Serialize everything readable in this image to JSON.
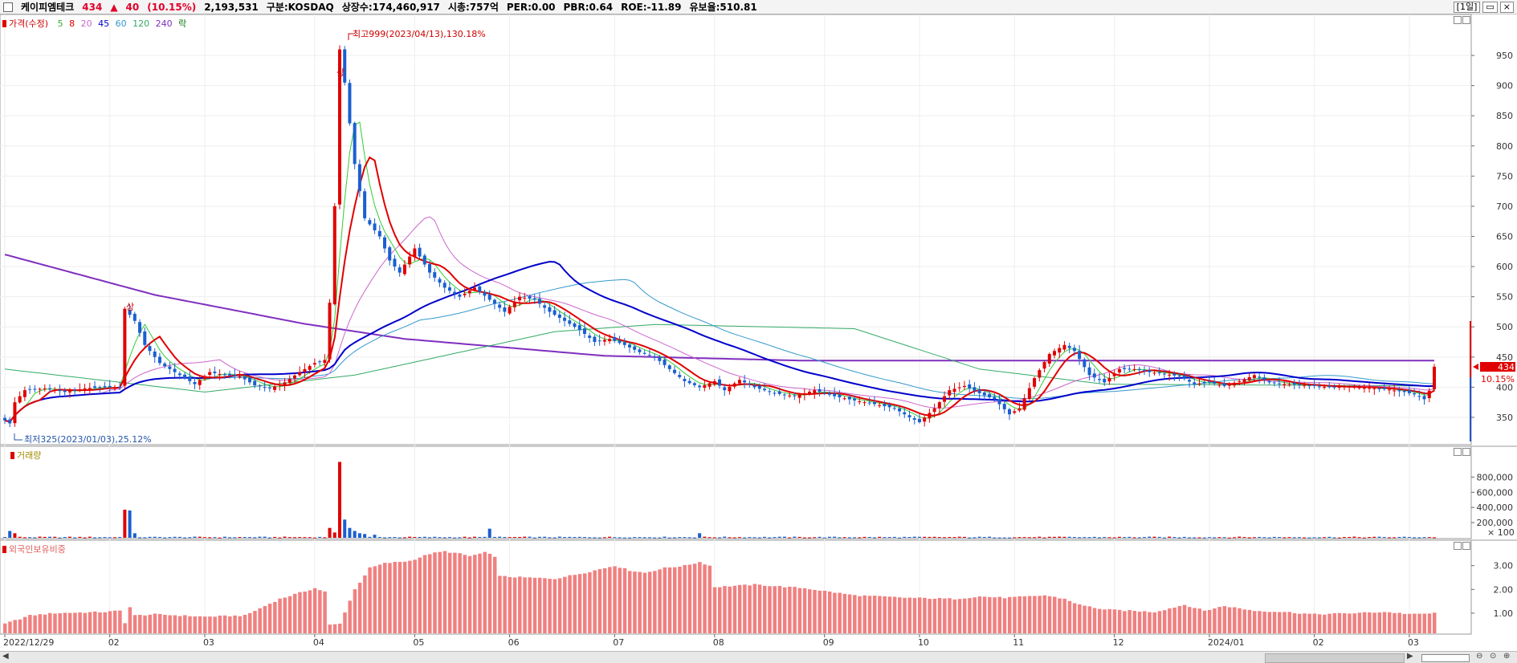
{
  "header": {
    "stock_name": "케이피엠테크",
    "price": "434",
    "change_arrow": "▲",
    "change": "40",
    "change_pct": "(10.15%)",
    "volume": "2,193,531",
    "market": "구분:KOSDAQ",
    "shares": "상장수:174,460,917",
    "market_cap": "시총:757억",
    "per": "PER:0.00",
    "pbr": "PBR:0.64",
    "roe": "ROE:-11.89",
    "retention": "유보율:510.81",
    "period": "[1일]"
  },
  "price_panel": {
    "label": "가격(수정)",
    "ma_labels": [
      "5",
      "8",
      "20",
      "45",
      "60",
      "120",
      "240"
    ],
    "ma_colors": [
      "#33cc33",
      "#e00000",
      "#cc66cc",
      "#0000cc",
      "#3399cc",
      "#33aa66",
      "#7f2fbf"
    ],
    "extra_label": "락",
    "high_note": "최고999(2023/04/13),130.18%",
    "low_note": "최저325(2023/01/03),25.12%",
    "event_marks": [
      "상",
      "상"
    ],
    "current_price_tag": "434",
    "current_pct_tag": "10.15%"
  },
  "volume_panel": {
    "label": "거래량",
    "unit": "× 100"
  },
  "foreign_panel": {
    "label": "외국인보유비중"
  },
  "chart_data": [
    {
      "type": "candlestick",
      "name": "가격(수정)",
      "yticks": [
        350,
        400,
        450,
        500,
        550,
        600,
        650,
        700,
        750,
        800,
        850,
        900,
        950
      ],
      "ylim": [
        310,
        1010
      ],
      "xticks": [
        {
          "label": "2022/12/29",
          "idx": 0
        },
        {
          "label": "02",
          "idx": 21
        },
        {
          "label": "03",
          "idx": 40
        },
        {
          "label": "04",
          "idx": 62
        },
        {
          "label": "05",
          "idx": 82
        },
        {
          "label": "06",
          "idx": 101
        },
        {
          "label": "07",
          "idx": 122
        },
        {
          "label": "08",
          "idx": 142
        },
        {
          "label": "09",
          "idx": 164
        },
        {
          "label": "10",
          "idx": 183
        },
        {
          "label": "11",
          "idx": 202
        },
        {
          "label": "12",
          "idx": 222
        },
        {
          "label": "2024/01",
          "idx": 241
        },
        {
          "label": "02",
          "idx": 262
        },
        {
          "label": "03",
          "idx": 281
        }
      ],
      "anchors_close": [
        [
          0,
          345
        ],
        [
          1,
          340
        ],
        [
          2,
          375
        ],
        [
          4,
          395
        ],
        [
          8,
          398
        ],
        [
          12,
          392
        ],
        [
          16,
          398
        ],
        [
          20,
          400
        ],
        [
          23,
          400
        ],
        [
          24,
          530
        ],
        [
          26,
          510
        ],
        [
          28,
          470
        ],
        [
          31,
          440
        ],
        [
          35,
          420
        ],
        [
          38,
          405
        ],
        [
          41,
          425
        ],
        [
          44,
          420
        ],
        [
          47,
          418
        ],
        [
          50,
          403
        ],
        [
          53,
          398
        ],
        [
          56,
          408
        ],
        [
          59,
          425
        ],
        [
          62,
          440
        ],
        [
          64,
          445
        ],
        [
          65,
          540
        ],
        [
          66,
          700
        ],
        [
          67,
          960
        ],
        [
          68,
          905
        ],
        [
          70,
          770
        ],
        [
          72,
          680
        ],
        [
          75,
          650
        ],
        [
          77,
          610
        ],
        [
          79,
          590
        ],
        [
          82,
          630
        ],
        [
          85,
          590
        ],
        [
          88,
          565
        ],
        [
          91,
          550
        ],
        [
          94,
          565
        ],
        [
          97,
          545
        ],
        [
          100,
          525
        ],
        [
          103,
          550
        ],
        [
          106,
          545
        ],
        [
          109,
          525
        ],
        [
          112,
          510
        ],
        [
          115,
          495
        ],
        [
          118,
          475
        ],
        [
          121,
          480
        ],
        [
          124,
          470
        ],
        [
          127,
          458
        ],
        [
          130,
          450
        ],
        [
          133,
          430
        ],
        [
          136,
          410
        ],
        [
          139,
          400
        ],
        [
          142,
          410
        ],
        [
          144,
          395
        ],
        [
          147,
          412
        ],
        [
          150,
          400
        ],
        [
          154,
          390
        ],
        [
          158,
          385
        ],
        [
          162,
          395
        ],
        [
          166,
          385
        ],
        [
          170,
          378
        ],
        [
          174,
          372
        ],
        [
          178,
          365
        ],
        [
          181,
          350
        ],
        [
          183,
          342
        ],
        [
          186,
          365
        ],
        [
          189,
          395
        ],
        [
          192,
          402
        ],
        [
          195,
          390
        ],
        [
          198,
          380
        ],
        [
          201,
          355
        ],
        [
          203,
          365
        ],
        [
          206,
          415
        ],
        [
          209,
          455
        ],
        [
          212,
          470
        ],
        [
          214,
          460
        ],
        [
          217,
          420
        ],
        [
          220,
          408
        ],
        [
          223,
          430
        ],
        [
          226,
          430
        ],
        [
          229,
          425
        ],
        [
          232,
          422
        ],
        [
          235,
          418
        ],
        [
          238,
          405
        ],
        [
          241,
          408
        ],
        [
          244,
          402
        ],
        [
          247,
          410
        ],
        [
          250,
          420
        ],
        [
          253,
          408
        ],
        [
          256,
          405
        ],
        [
          259,
          404
        ],
        [
          262,
          402
        ],
        [
          265,
          400
        ],
        [
          268,
          401
        ],
        [
          271,
          400
        ],
        [
          274,
          398
        ],
        [
          277,
          396
        ],
        [
          280,
          392
        ],
        [
          282,
          388
        ],
        [
          283,
          385
        ],
        [
          284,
          380
        ],
        [
          285,
          394
        ],
        [
          286,
          434
        ]
      ],
      "ma_levels": {
        "120": [
          [
            0,
            430
          ],
          [
            40,
            392
          ],
          [
            70,
            420
          ],
          [
            110,
            492
          ],
          [
            130,
            504
          ],
          [
            170,
            497
          ],
          [
            195,
            430
          ],
          [
            220,
            405
          ],
          [
            286,
            402
          ]
        ],
        "240": [
          [
            0,
            620
          ],
          [
            30,
            553
          ],
          [
            60,
            505
          ],
          [
            80,
            480
          ],
          [
            120,
            452
          ],
          [
            160,
            444
          ],
          [
            286,
            444
          ]
        ]
      }
    },
    {
      "type": "bar",
      "name": "거래량",
      "yticks": [
        200000,
        400000,
        600000,
        800000
      ],
      "ylim": [
        0,
        1100000
      ],
      "spikes": [
        {
          "idx": 1,
          "value": 90000
        },
        {
          "idx": 2,
          "value": 60000
        },
        {
          "idx": 24,
          "value": 370000
        },
        {
          "idx": 25,
          "value": 360000
        },
        {
          "idx": 26,
          "value": 60000
        },
        {
          "idx": 65,
          "value": 130000
        },
        {
          "idx": 66,
          "value": 70000
        },
        {
          "idx": 67,
          "value": 1000000
        },
        {
          "idx": 68,
          "value": 240000
        },
        {
          "idx": 69,
          "value": 130000
        },
        {
          "idx": 70,
          "value": 90000
        },
        {
          "idx": 71,
          "value": 60000
        },
        {
          "idx": 72,
          "value": 50000
        },
        {
          "idx": 74,
          "value": 40000
        },
        {
          "idx": 97,
          "value": 120000
        },
        {
          "idx": 139,
          "value": 60000
        }
      ]
    },
    {
      "type": "bar",
      "name": "외국인보유비중",
      "yticks": [
        1.0,
        2.0,
        3.0
      ],
      "ylim": [
        0.15,
        3.7
      ],
      "anchors": [
        [
          0,
          0.55
        ],
        [
          5,
          0.9
        ],
        [
          10,
          1.0
        ],
        [
          20,
          1.05
        ],
        [
          23,
          1.1
        ],
        [
          24,
          0.6
        ],
        [
          25,
          1.25
        ],
        [
          26,
          0.9
        ],
        [
          30,
          0.95
        ],
        [
          40,
          0.85
        ],
        [
          48,
          0.9
        ],
        [
          55,
          1.6
        ],
        [
          62,
          2.05
        ],
        [
          64,
          1.9
        ],
        [
          65,
          0.5
        ],
        [
          67,
          0.55
        ],
        [
          68,
          1.05
        ],
        [
          70,
          2.0
        ],
        [
          73,
          2.9
        ],
        [
          76,
          3.1
        ],
        [
          81,
          3.2
        ],
        [
          85,
          3.5
        ],
        [
          88,
          3.6
        ],
        [
          91,
          3.5
        ],
        [
          93,
          3.4
        ],
        [
          96,
          3.55
        ],
        [
          98,
          3.4
        ],
        [
          99,
          2.55
        ],
        [
          104,
          2.5
        ],
        [
          110,
          2.45
        ],
        [
          116,
          2.7
        ],
        [
          122,
          3.0
        ],
        [
          125,
          2.8
        ],
        [
          128,
          2.7
        ],
        [
          132,
          2.9
        ],
        [
          136,
          3.0
        ],
        [
          139,
          3.15
        ],
        [
          141,
          3.0
        ],
        [
          142,
          2.1
        ],
        [
          150,
          2.2
        ],
        [
          160,
          2.05
        ],
        [
          170,
          1.75
        ],
        [
          180,
          1.65
        ],
        [
          190,
          1.6
        ],
        [
          195,
          1.7
        ],
        [
          200,
          1.65
        ],
        [
          205,
          1.7
        ],
        [
          208,
          1.75
        ],
        [
          212,
          1.6
        ],
        [
          215,
          1.35
        ],
        [
          220,
          1.15
        ],
        [
          230,
          1.05
        ],
        [
          236,
          1.35
        ],
        [
          240,
          1.1
        ],
        [
          244,
          1.3
        ],
        [
          250,
          1.1
        ],
        [
          256,
          1.05
        ],
        [
          262,
          0.95
        ],
        [
          270,
          1.0
        ],
        [
          276,
          1.05
        ],
        [
          282,
          0.95
        ],
        [
          286,
          1.0
        ]
      ]
    }
  ]
}
